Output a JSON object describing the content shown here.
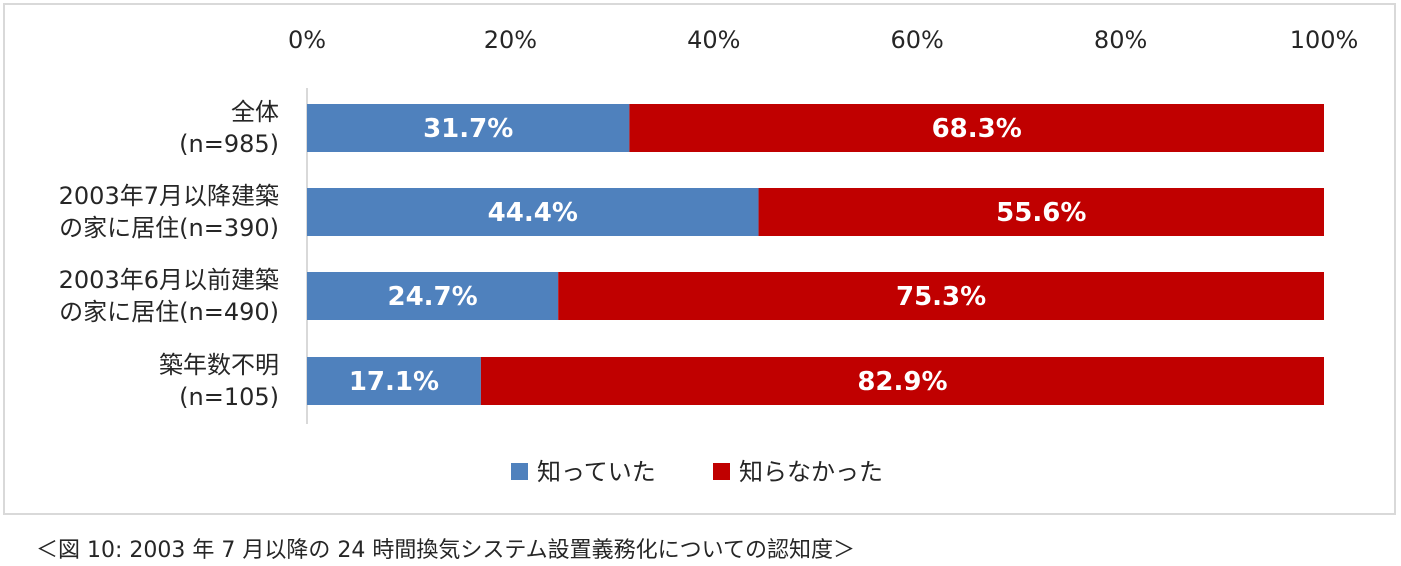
{
  "chart_data": {
    "type": "bar",
    "orientation": "horizontal",
    "stacked": true,
    "categories": [
      [
        "全体",
        "(n=985)"
      ],
      [
        "2003年7月以降建築",
        "の家に居住(n=390)"
      ],
      [
        "2003年6月以前建築",
        "の家に居住(n=490)"
      ],
      [
        "築年数不明",
        "(n=105)"
      ]
    ],
    "series": [
      {
        "name": "知っていた",
        "color": "#4f81bd",
        "values": [
          31.7,
          44.4,
          24.7,
          17.1
        ],
        "labels": [
          "31.7%",
          "44.4%",
          "24.7%",
          "17.1%"
        ]
      },
      {
        "name": "知らなかった",
        "color": "#c00000",
        "values": [
          68.3,
          55.6,
          75.3,
          82.9
        ],
        "labels": [
          "68.3%",
          "55.6%",
          "75.3%",
          "82.9%"
        ]
      }
    ],
    "xlim": [
      0,
      100
    ],
    "xticks": [
      "0%",
      "20%",
      "40%",
      "60%",
      "80%",
      "100%"
    ],
    "xaxis_position": "top",
    "grid": false,
    "legend_position": "bottom"
  },
  "caption": "＜図 10: 2003 年 7 月以降の 24 時間換気システム設置義務化についての認知度＞"
}
